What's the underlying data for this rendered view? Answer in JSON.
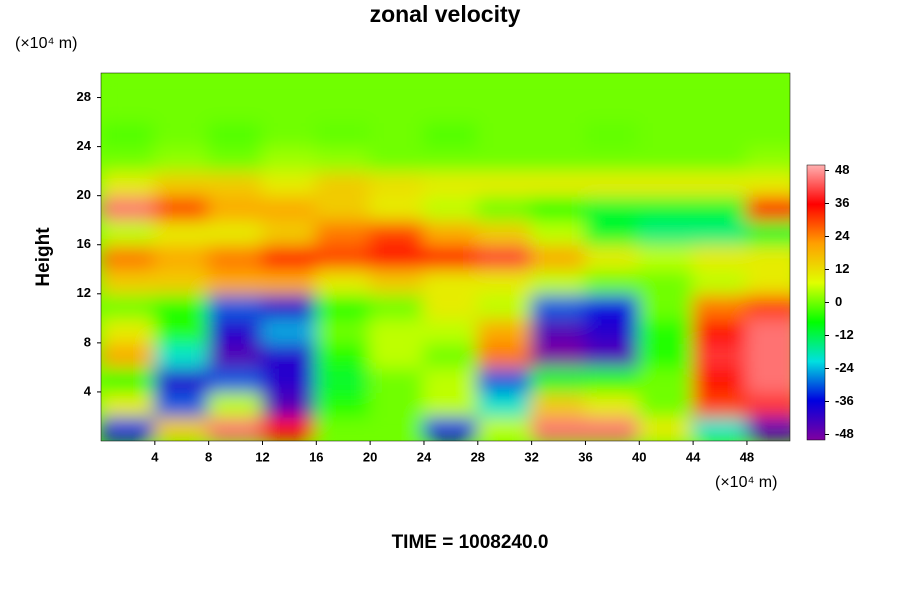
{
  "chart_data": {
    "type": "heatmap",
    "title": "zonal velocity",
    "ylabel": "Height",
    "x_unit": "(×10⁴ m)",
    "y_unit": "(×10⁴ m)",
    "footer": "TIME = 1008240.0",
    "x": [
      2,
      6,
      10,
      14,
      18,
      22,
      26,
      30,
      34,
      38,
      42,
      46,
      50
    ],
    "y": [
      1,
      3,
      5,
      7,
      9,
      11,
      13,
      15,
      17,
      19,
      21,
      23,
      25,
      27,
      29
    ],
    "z": [
      [
        -35,
        15,
        45,
        35,
        0,
        0,
        -35,
        5,
        45,
        45,
        10,
        -20,
        -45
      ],
      [
        10,
        -30,
        5,
        -45,
        -5,
        0,
        5,
        -20,
        15,
        10,
        0,
        30,
        40
      ],
      [
        -5,
        -40,
        -30,
        -40,
        -10,
        0,
        5,
        -30,
        -10,
        -5,
        0,
        35,
        45
      ],
      [
        20,
        -20,
        -45,
        -40,
        -5,
        5,
        0,
        25,
        -50,
        -45,
        -5,
        40,
        45
      ],
      [
        10,
        -5,
        -40,
        -25,
        0,
        5,
        5,
        20,
        -45,
        -40,
        -5,
        35,
        45
      ],
      [
        0,
        -5,
        -30,
        -40,
        -5,
        0,
        10,
        5,
        -30,
        -35,
        0,
        25,
        30
      ],
      [
        15,
        15,
        20,
        20,
        10,
        15,
        10,
        10,
        5,
        0,
        0,
        5,
        10
      ],
      [
        25,
        20,
        25,
        35,
        30,
        35,
        35,
        40,
        20,
        10,
        5,
        10,
        10
      ],
      [
        5,
        10,
        10,
        15,
        25,
        30,
        20,
        15,
        5,
        -10,
        -15,
        -15,
        -10
      ],
      [
        45,
        30,
        20,
        20,
        15,
        10,
        5,
        0,
        -5,
        -10,
        -10,
        -10,
        35
      ],
      [
        10,
        15,
        15,
        10,
        15,
        12,
        10,
        10,
        10,
        10,
        10,
        10,
        10
      ],
      [
        0,
        2,
        0,
        3,
        2,
        0,
        0,
        0,
        0,
        0,
        0,
        0,
        2
      ],
      [
        -2,
        0,
        -2,
        0,
        -1,
        0,
        -2,
        0,
        0,
        -1,
        0,
        0,
        0
      ],
      [
        0,
        0,
        0,
        0,
        0,
        0,
        0,
        0,
        0,
        0,
        0,
        0,
        0
      ],
      [
        0,
        0,
        0,
        0,
        0,
        0,
        0,
        0,
        0,
        0,
        0,
        0,
        0
      ]
    ],
    "xlim": [
      0,
      51.2
    ],
    "ylim": [
      0,
      30
    ],
    "xticks": [
      4,
      8,
      12,
      16,
      20,
      24,
      28,
      32,
      36,
      40,
      44,
      48
    ],
    "yticks": [
      4,
      8,
      12,
      16,
      20,
      24,
      28
    ],
    "clim": [
      -50,
      50
    ],
    "cticks": [
      48,
      36,
      24,
      12,
      0,
      -12,
      -24,
      -36,
      -48
    ],
    "colorscale": [
      "#8000a0",
      "#0000e0",
      "#00e0e0",
      "#00ff00",
      "#e0ff00",
      "#ffa000",
      "#ff0000",
      "#ffb0b0"
    ]
  }
}
